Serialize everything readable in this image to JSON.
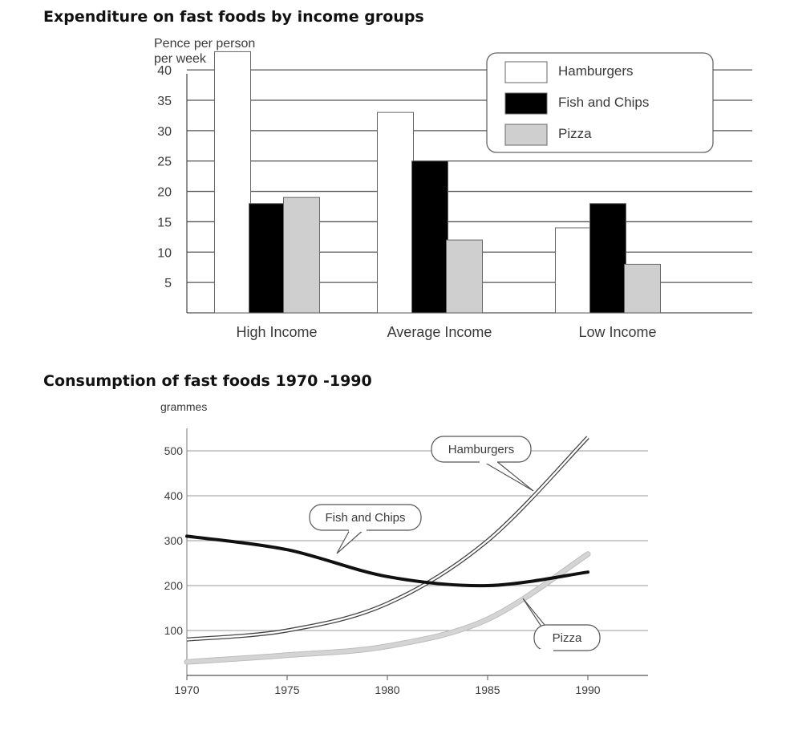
{
  "chart_data": [
    {
      "type": "bar",
      "title": "Expenditure on fast foods by income groups",
      "ylabel": [
        "Pence per person",
        "per week"
      ],
      "categories": [
        "High Income",
        "Average Income",
        "Low Income"
      ],
      "ylim": [
        0,
        42
      ],
      "yticks": [
        5,
        10,
        15,
        20,
        25,
        30,
        35,
        40
      ],
      "grid": true,
      "legend": "top-right",
      "series": [
        {
          "name": "Hamburgers",
          "values": [
            43,
            33,
            14
          ],
          "color": "#ffffff"
        },
        {
          "name": "Fish and Chips",
          "values": [
            18,
            25,
            18
          ],
          "color": "#000000"
        },
        {
          "name": "Pizza",
          "values": [
            19,
            12,
            8
          ],
          "color": "#cfcfcf"
        }
      ]
    },
    {
      "type": "line",
      "title": "Consumption of fast foods 1970 -1990",
      "ylabel": "grammes",
      "x": [
        1970,
        1975,
        1980,
        1985,
        1990
      ],
      "xlim": [
        1970,
        1993
      ],
      "ylim": [
        0,
        550
      ],
      "xticks": [
        1970,
        1975,
        1980,
        1985,
        1990
      ],
      "yticks": [
        100,
        200,
        300,
        400,
        500
      ],
      "grid": true,
      "series": [
        {
          "name": "Hamburgers",
          "values": [
            80,
            100,
            160,
            300,
            530
          ],
          "color": "#ffffff"
        },
        {
          "name": "Fish and Chips",
          "values": [
            310,
            280,
            220,
            200,
            230
          ],
          "color": "#111111"
        },
        {
          "name": "Pizza",
          "values": [
            30,
            45,
            65,
            125,
            270
          ],
          "color": "#d4d4d4"
        }
      ]
    }
  ]
}
